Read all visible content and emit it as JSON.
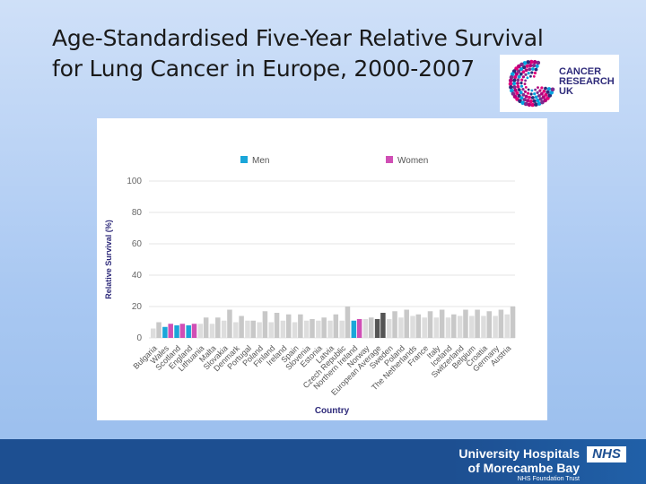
{
  "slide": {
    "title_line1": "Age-Standardised Five-Year Relative Survival",
    "title_line2": "for Lung Cancer in Europe, 2000-2007"
  },
  "logo": {
    "line1": "CANCER",
    "line2": "RESEARCH",
    "line3": "UK"
  },
  "footer": {
    "line1": "University Hospitals",
    "line2": "of Morecambe Bay",
    "line3": "NHS Foundation Trust",
    "nhs_badge": "NHS"
  },
  "chart_data": {
    "type": "bar",
    "xlabel": "Country",
    "ylabel": "Relative Survival (%)",
    "ylim": [
      0,
      100
    ],
    "yticks": [
      0,
      20,
      40,
      60,
      80,
      100
    ],
    "grid": true,
    "legend_position": "top",
    "categories": [
      "Bulgaria",
      "Wales",
      "Scotland",
      "England",
      "Lithuania",
      "Malta",
      "Slovakia",
      "Denmark",
      "Portugal",
      "Poland",
      "Finland",
      "Ireland",
      "Spain",
      "Slovenia",
      "Estonia",
      "Latvia",
      "Czech Republic",
      "Northern Ireland",
      "Norway",
      "European Average",
      "Sweden",
      "Poland",
      "The Netherlands",
      "France",
      "Italy",
      "Iceland",
      "Switzerland",
      "Belgium",
      "Croatia",
      "Germany",
      "Austria"
    ],
    "series": [
      {
        "name": "Men",
        "color": "#1aa6d9",
        "values": [
          6,
          7,
          8,
          8,
          9,
          9,
          11,
          10,
          11,
          10,
          10,
          11,
          10,
          11,
          11,
          11,
          11,
          11,
          12,
          12,
          12,
          13,
          14,
          13,
          13,
          13,
          14,
          14,
          14,
          14,
          15
        ]
      },
      {
        "name": "Women",
        "color": "#d04fb5",
        "values": [
          10,
          9,
          9,
          9,
          13,
          13,
          18,
          14,
          11,
          17,
          16,
          15,
          15,
          12,
          13,
          15,
          20,
          12,
          13,
          16,
          17,
          18,
          15,
          17,
          18,
          15,
          18,
          18,
          17,
          18,
          20
        ]
      }
    ],
    "highlight_colors": {
      "default_men": "#dddddd",
      "default_women": "#c8c8c8",
      "european_average_men": "#555555",
      "european_average_women": "#555555"
    },
    "highlighted_categories": {
      "Wales": true,
      "Scotland": true,
      "England": true,
      "Northern Ireland": true,
      "European Average": true
    }
  }
}
